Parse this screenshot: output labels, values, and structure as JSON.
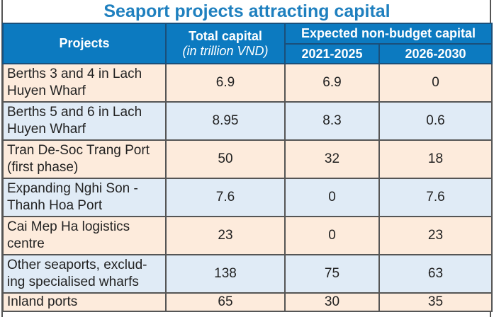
{
  "title": "Seaport projects attracting capital",
  "header": {
    "projects": "Projects",
    "total_capital": "Total capital",
    "total_capital_unit": "(in trillion VND)",
    "expected": "Expected non-budget capital",
    "period1": "2021-2025",
    "period2": "2026-2030"
  },
  "rows": [
    {
      "project": "Berths 3 and 4 in Lach Huyen Wharf",
      "total": "6.9",
      "p1": "6.9",
      "p2": "0"
    },
    {
      "project": "Berths 5 and 6 in Lach Huyen Wharf",
      "total": "8.95",
      "p1": "8.3",
      "p2": "0.6"
    },
    {
      "project": "Tran De-Soc Trang Port (first phase)",
      "total": "50",
      "p1": "32",
      "p2": "18"
    },
    {
      "project": "Expanding Nghi Son - Thanh Hoa Port",
      "total": "7.6",
      "p1": "0",
      "p2": "7.6"
    },
    {
      "project": "Cai Mep Ha logistics centre",
      "total": "23",
      "p1": "0",
      "p2": "23"
    },
    {
      "project": "Other seaports, exclud-ing specialised wharfs",
      "total": "138",
      "p1": "75",
      "p2": "63"
    },
    {
      "project": "Inland ports",
      "total": "65",
      "p1": "30",
      "p2": "35"
    }
  ],
  "colors": {
    "title": "#1f80bf",
    "header_bg": "#0c7ac0",
    "row_peach": "#fdebdc",
    "row_blue": "#e0ebf6"
  }
}
